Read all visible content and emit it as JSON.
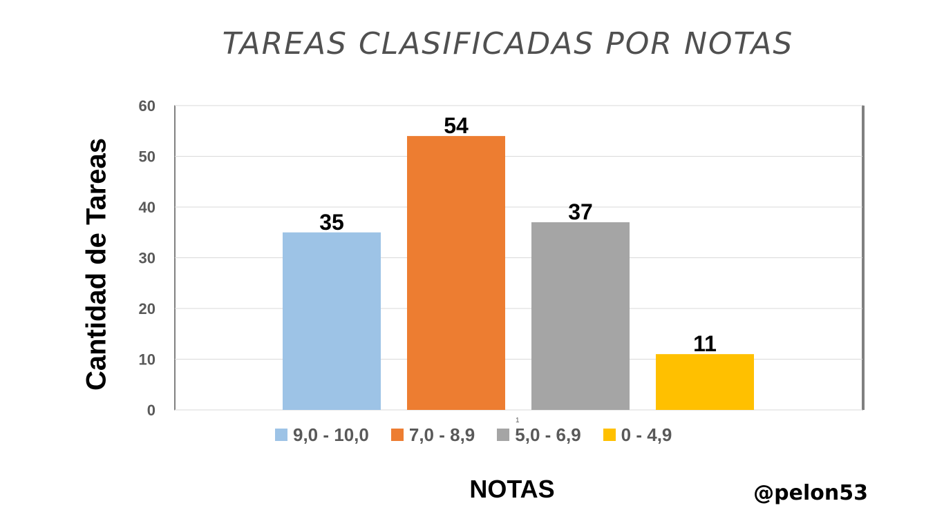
{
  "chart_data": {
    "type": "bar",
    "title": "TAREAS CLASIFICADAS POR NOTAS",
    "xlabel": "NOTAS",
    "ylabel": "Cantidad de Tareas",
    "categories": [
      "9,0 - 10,0",
      "7,0 - 8,9",
      "5,0 - 6,9",
      "0 - 4,9"
    ],
    "values": [
      35,
      54,
      37,
      11
    ],
    "colors": [
      "#9DC3E6",
      "#ED7D31",
      "#A5A5A5",
      "#FFC000"
    ],
    "ylim": [
      0,
      60
    ],
    "yticks": [
      0,
      10,
      20,
      30,
      40,
      50,
      60
    ],
    "grid": true,
    "legend_position": "bottom",
    "footnote": "1"
  },
  "watermark": "@pelon53"
}
